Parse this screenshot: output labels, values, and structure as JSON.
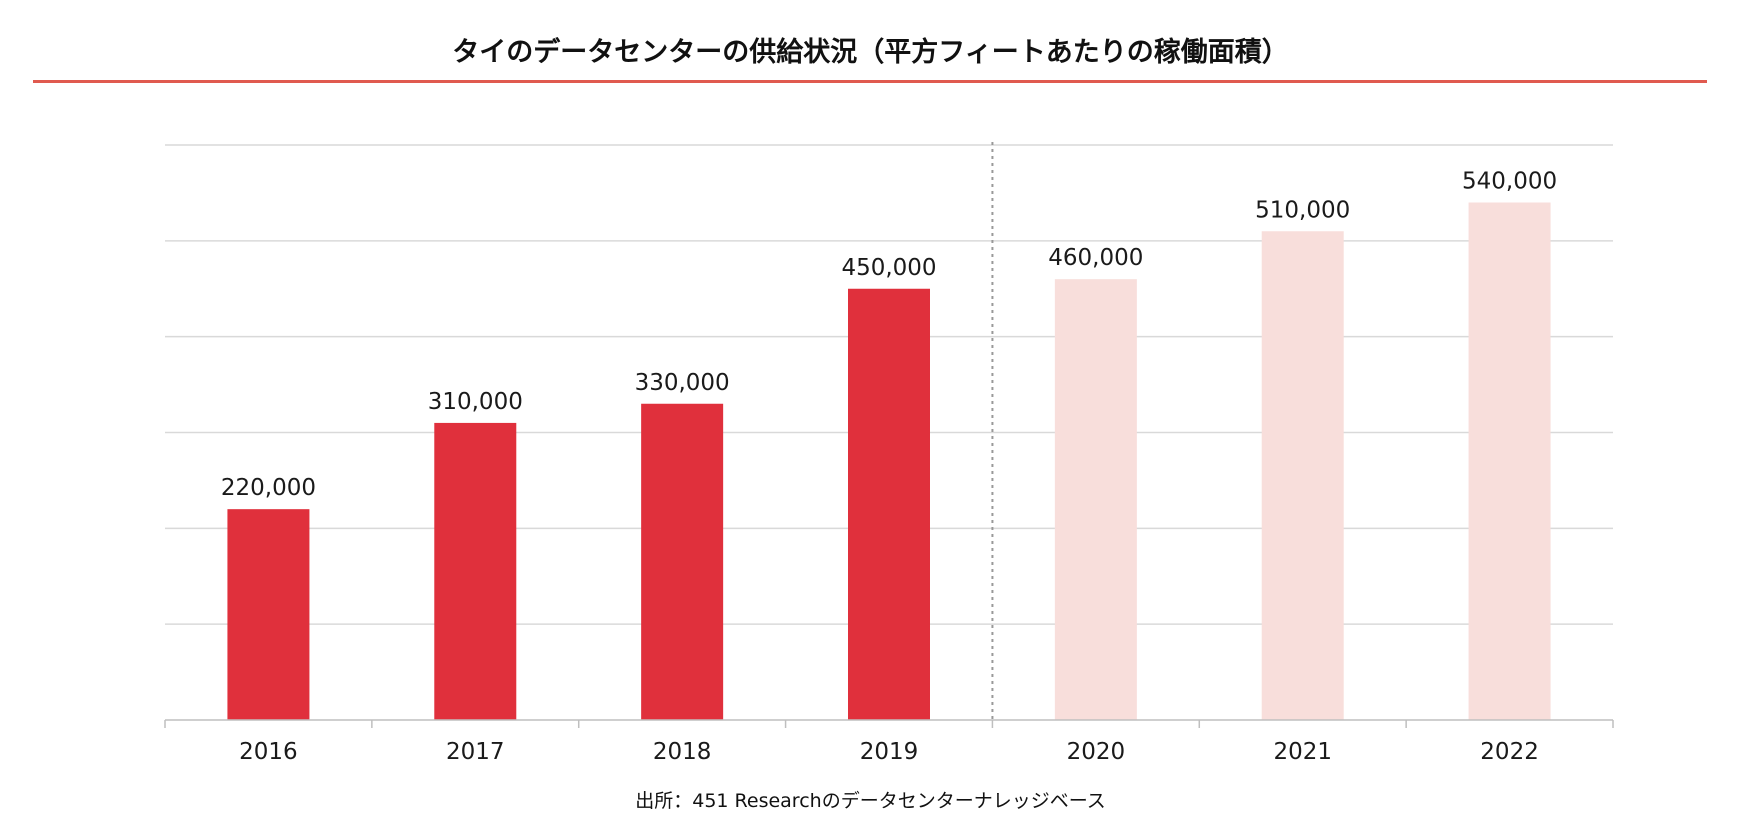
{
  "title": "タイのデータセンターの供給状況（平方フィートあたりの稼働面積）",
  "source": "出所：451 Researchのデータセンターナレッジベース",
  "colors": {
    "actual_bar": "#e0303c",
    "forecast_bar": "#f8dedb",
    "title_rule": "#e05a4f",
    "grid": "#d9d9d9",
    "divider": "#999999"
  },
  "chart_data": {
    "type": "bar",
    "title": "タイのデータセンターの供給状況（平方フィートあたりの稼働面積）",
    "xlabel": "",
    "ylabel": "",
    "categories": [
      "2016",
      "2017",
      "2018",
      "2019",
      "2020",
      "2021",
      "2022"
    ],
    "values": [
      220000,
      310000,
      330000,
      450000,
      460000,
      510000,
      540000
    ],
    "value_labels": [
      "220,000",
      "310,000",
      "330,000",
      "450,000",
      "460,000",
      "510,000",
      "540,000"
    ],
    "forecast": [
      false,
      false,
      false,
      false,
      true,
      true,
      true
    ],
    "ylim": [
      0,
      600000
    ],
    "grid_step": 100000,
    "grid": true,
    "y_tick_labels_shown": false,
    "divider_between": [
      "2019",
      "2020"
    ]
  }
}
